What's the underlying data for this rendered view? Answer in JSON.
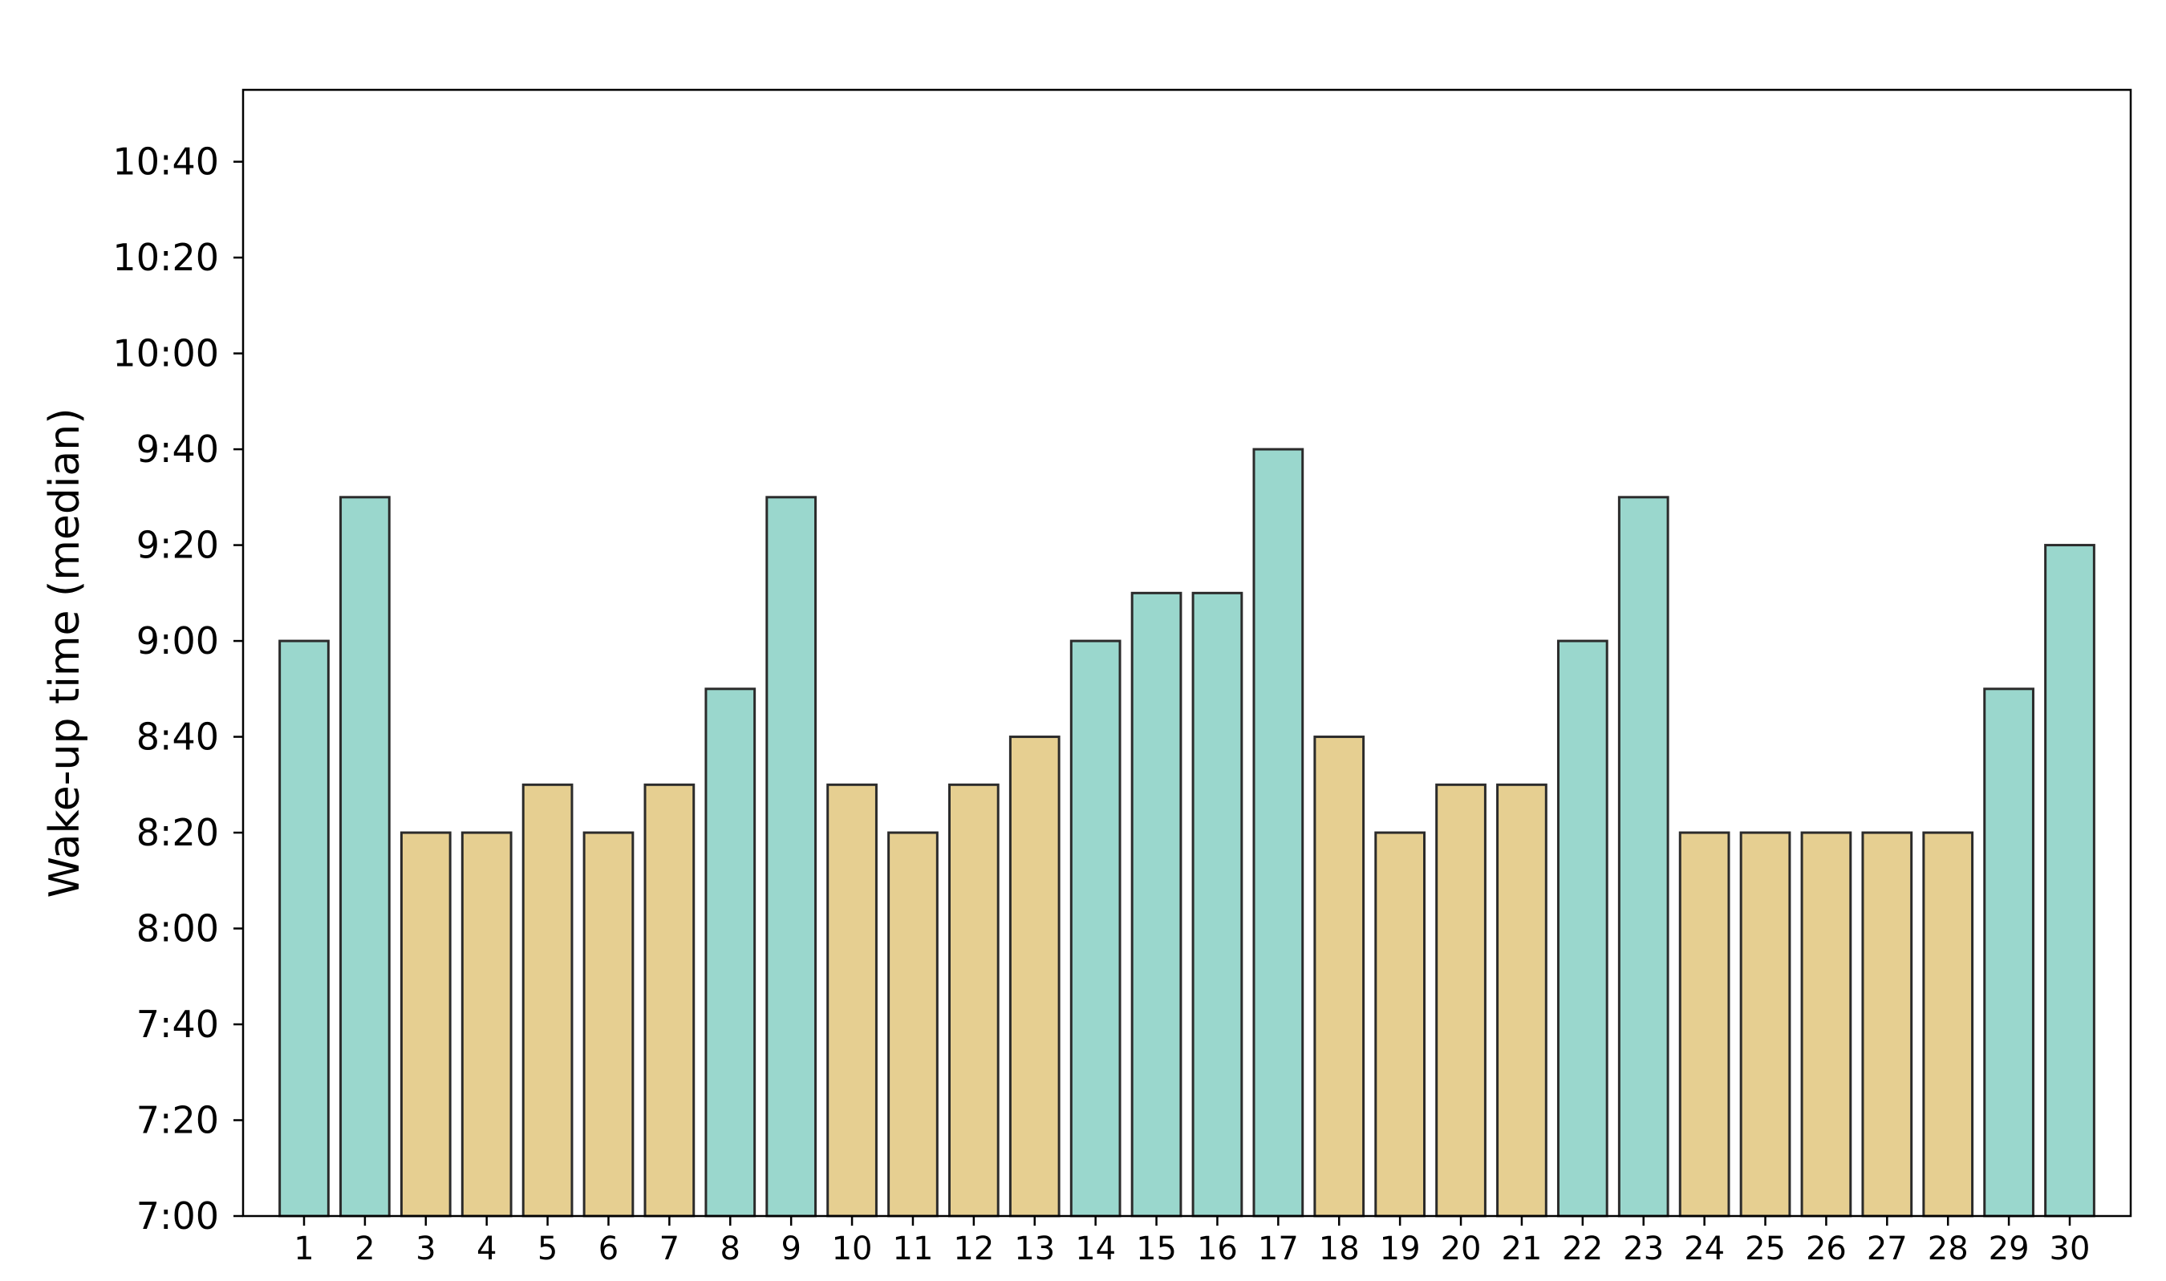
{
  "chart_data": {
    "type": "bar",
    "title": "",
    "xlabel": "",
    "ylabel": "Wake-up time (median)",
    "categories": [
      "1",
      "2",
      "3",
      "4",
      "5",
      "6",
      "7",
      "8",
      "9",
      "10",
      "11",
      "12",
      "13",
      "14",
      "15",
      "16",
      "17",
      "18",
      "19",
      "20",
      "21",
      "22",
      "23",
      "24",
      "25",
      "26",
      "27",
      "28",
      "29",
      "30"
    ],
    "values": [
      "9:00",
      "9:30",
      "8:20",
      "8:20",
      "8:30",
      "8:20",
      "8:30",
      "8:50",
      "9:30",
      "8:30",
      "8:20",
      "8:30",
      "8:40",
      "9:00",
      "9:10",
      "9:10",
      "9:40",
      "8:40",
      "8:20",
      "8:30",
      "8:30",
      "9:00",
      "9:30",
      "8:20",
      "8:20",
      "8:20",
      "8:20",
      "8:20",
      "8:50",
      "9:20"
    ],
    "bar_colors": [
      "#9ad7cd",
      "#9ad7cd",
      "#e6cf91",
      "#e6cf91",
      "#e6cf91",
      "#e6cf91",
      "#e6cf91",
      "#9ad7cd",
      "#9ad7cd",
      "#e6cf91",
      "#e6cf91",
      "#e6cf91",
      "#e6cf91",
      "#9ad7cd",
      "#9ad7cd",
      "#9ad7cd",
      "#9ad7cd",
      "#e6cf91",
      "#e6cf91",
      "#e6cf91",
      "#e6cf91",
      "#9ad7cd",
      "#9ad7cd",
      "#e6cf91",
      "#e6cf91",
      "#e6cf91",
      "#e6cf91",
      "#e6cf91",
      "#9ad7cd",
      "#9ad7cd"
    ],
    "bar_edge_color": "#2b2b2b",
    "ylim": [
      "7:00",
      "10:55"
    ],
    "yticks": [
      "7:00",
      "7:20",
      "7:40",
      "8:00",
      "8:20",
      "8:40",
      "9:00",
      "9:20",
      "9:40",
      "10:00",
      "10:20",
      "10:40"
    ],
    "grid": false,
    "legend": "none"
  }
}
